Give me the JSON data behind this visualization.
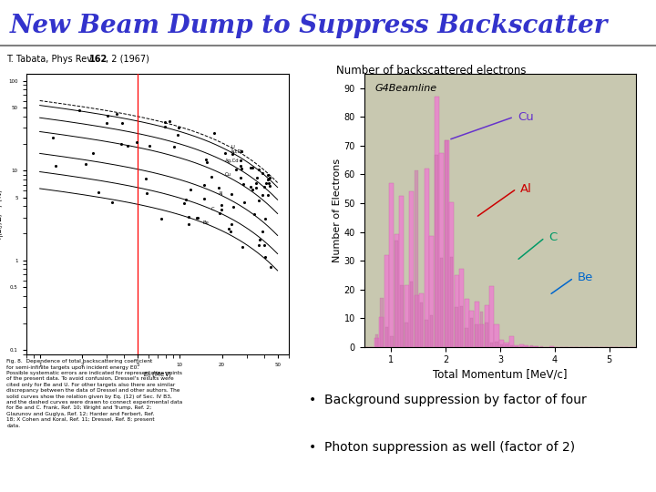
{
  "title": "New Beam Dump to Suppress Backscatter",
  "title_color": "#3333cc",
  "title_fontsize": 20,
  "slide_bg": "#ffffff",
  "ref_text": "T. Tabata, Phys Rev. 162, 2 (1967)",
  "histogram_title": "Number of backscattered electrons",
  "histogram_xlabel": "Total Momentum [MeV/c]",
  "histogram_ylabel": "Number of Electrons",
  "histogram_outer_bg": "#e8e8d8",
  "histogram_plot_bg": "#c8c8b0",
  "bar_color": "#e888cc",
  "bar_edge_color": "#cc66aa",
  "yticks": [
    0,
    10,
    20,
    30,
    40,
    50,
    60,
    70,
    80,
    90
  ],
  "xticks": [
    1,
    2,
    3,
    4,
    5
  ],
  "xlim": [
    0.5,
    5.5
  ],
  "ylim": [
    0,
    95
  ],
  "g4label": "G4Beamline",
  "labels": [
    "Cu",
    "Al",
    "C",
    "Be"
  ],
  "label_colors": [
    "#6633cc",
    "#cc0000",
    "#009966",
    "#0066cc"
  ],
  "bullet1": "Background suppression by factor of four",
  "bullet2": "Photon suppression as well (factor of 2)",
  "caption_text": "Fig. 8.  Dependence of total backscattering coefficient\nfor semi-infinite targets upon incident energy E0.\nPossible systematic errors are indicated for representative points\nof the present data. To avoid confusion, Dressel's results were\ncited only for Be and U. For other targets also there are similar\ndiscrepancy between the data of Dressel and other authors. The\nsolid curves show the relation given by Eq. (12) of Sec. IV B3,\nand the dashed curves were drawn to connect experimental data\nfor Be and C. Frank, Ref. 10; Wright and Trump, Ref. 2;\nGlazunov and Guglya, Ref. 12; Harder and Ferbert, Ref.\n18; X Cohen and Koral, Ref. 11; Dressel, Ref. 8; present\ndata."
}
